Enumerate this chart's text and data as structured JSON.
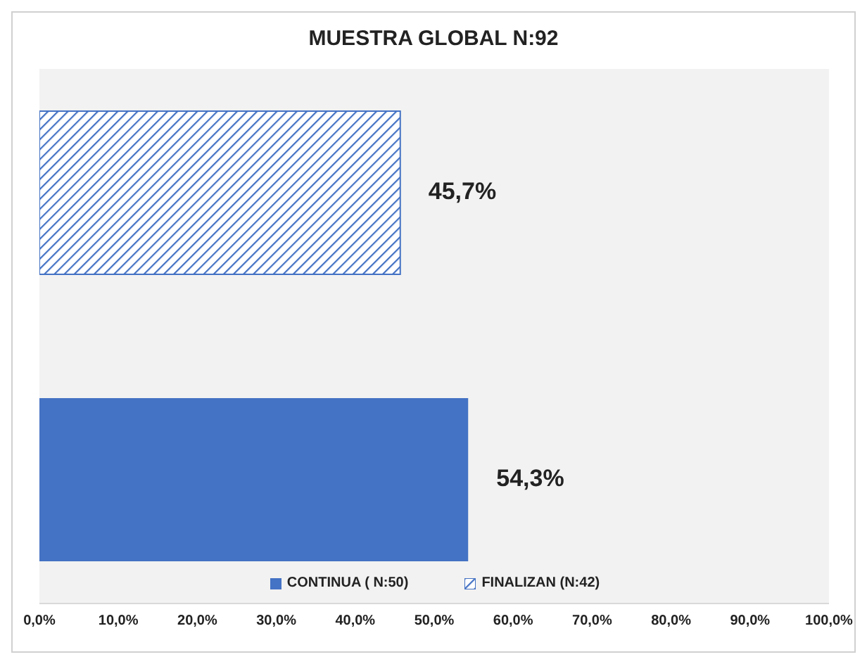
{
  "chart_data": {
    "type": "bar",
    "orientation": "horizontal",
    "title": "MUESTRA GLOBAL N:92",
    "categories": [
      null
    ],
    "series": [
      {
        "name": "CONTINUA ( N:50)",
        "color": "#4472c4",
        "values": [
          54.3
        ],
        "value_labels": [
          "54,3%"
        ]
      },
      {
        "name": "FINALIZAN (N:42)",
        "color": "#4472c4",
        "values": [
          45.7
        ],
        "value_labels": [
          "45,7%"
        ]
      }
    ],
    "xlim": [
      0,
      100
    ],
    "xticks": [
      {
        "value": 0,
        "label": "0,0%"
      },
      {
        "value": 10,
        "label": "10,0%"
      },
      {
        "value": 20,
        "label": "20,0%"
      },
      {
        "value": 30,
        "label": "30,0%"
      },
      {
        "value": 40,
        "label": "40,0%"
      },
      {
        "value": 50,
        "label": "50,0%"
      },
      {
        "value": 60,
        "label": "60,0%"
      },
      {
        "value": 70,
        "label": "70,0%"
      },
      {
        "value": 80,
        "label": "80,0%"
      },
      {
        "value": 90,
        "label": "90,0%"
      },
      {
        "value": 100,
        "label": "100,0%"
      }
    ],
    "legend": "bottom",
    "grid": false,
    "tick_labels": "x"
  }
}
